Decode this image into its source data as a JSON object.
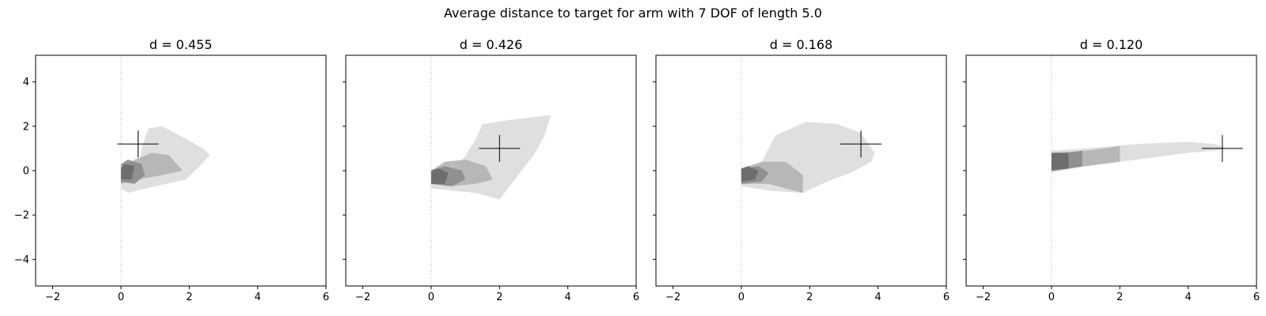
{
  "figure": {
    "title": "Average distance to target for arm with 7 DOF of length 5.0"
  },
  "chart_data": [
    {
      "type": "scatter",
      "title": "d = 0.455",
      "xlim": [
        -2.5,
        6
      ],
      "ylim": [
        -5.2,
        5.2
      ],
      "xticks": [
        -2,
        0,
        2,
        4,
        6
      ],
      "yticks": [
        -4,
        -2,
        0,
        2,
        4
      ],
      "ytick_labels_visible": true,
      "target": {
        "x": 0.5,
        "y": 1.2
      },
      "reference_line_x": 0,
      "envelopes": [
        {
          "shade": "light",
          "points": [
            [
              0.0,
              -0.5
            ],
            [
              0.5,
              -0.1
            ],
            [
              0.6,
              1.0
            ],
            [
              0.8,
              1.9
            ],
            [
              1.2,
              2.0
            ],
            [
              1.7,
              1.6
            ],
            [
              2.4,
              1.0
            ],
            [
              2.6,
              0.7
            ],
            [
              2.3,
              0.2
            ],
            [
              1.9,
              -0.4
            ],
            [
              1.0,
              -0.7
            ],
            [
              0.2,
              -1.0
            ],
            [
              0.0,
              -0.8
            ]
          ]
        },
        {
          "shade": "mid",
          "points": [
            [
              0.0,
              -0.6
            ],
            [
              0.5,
              -0.4
            ],
            [
              1.2,
              -0.2
            ],
            [
              1.8,
              0.0
            ],
            [
              1.4,
              0.7
            ],
            [
              0.9,
              0.8
            ],
            [
              0.4,
              0.5
            ],
            [
              0.0,
              0.0
            ]
          ]
        },
        {
          "shade": "dark",
          "points": [
            [
              0.0,
              -0.5
            ],
            [
              0.4,
              -0.6
            ],
            [
              0.7,
              -0.2
            ],
            [
              0.6,
              0.3
            ],
            [
              0.2,
              0.5
            ],
            [
              0.0,
              0.3
            ]
          ]
        },
        {
          "shade": "darkest",
          "points": [
            [
              0.0,
              -0.4
            ],
            [
              0.3,
              -0.4
            ],
            [
              0.4,
              0.2
            ],
            [
              0.1,
              0.3
            ],
            [
              0.0,
              0.1
            ]
          ]
        }
      ]
    },
    {
      "type": "scatter",
      "title": "d = 0.426",
      "xlim": [
        -2.5,
        6
      ],
      "ylim": [
        -5.2,
        5.2
      ],
      "xticks": [
        -2,
        0,
        2,
        4,
        6
      ],
      "yticks": [
        -4,
        -2,
        0,
        2,
        4
      ],
      "ytick_labels_visible": false,
      "target": {
        "x": 2.0,
        "y": 1.0
      },
      "reference_line_x": 0,
      "envelopes": [
        {
          "shade": "light",
          "points": [
            [
              0.0,
              -0.6
            ],
            [
              0.8,
              0.2
            ],
            [
              1.3,
              1.4
            ],
            [
              1.5,
              2.1
            ],
            [
              2.4,
              2.3
            ],
            [
              3.5,
              2.5
            ],
            [
              3.3,
              1.5
            ],
            [
              3.0,
              0.7
            ],
            [
              2.5,
              -0.3
            ],
            [
              2.0,
              -1.3
            ],
            [
              1.3,
              -1.0
            ],
            [
              0.6,
              -0.9
            ],
            [
              0.0,
              -0.8
            ]
          ]
        },
        {
          "shade": "mid",
          "points": [
            [
              0.0,
              -0.6
            ],
            [
              0.6,
              -0.7
            ],
            [
              1.3,
              -0.6
            ],
            [
              1.8,
              -0.4
            ],
            [
              1.6,
              0.2
            ],
            [
              1.0,
              0.5
            ],
            [
              0.4,
              0.4
            ],
            [
              0.0,
              0.0
            ]
          ]
        },
        {
          "shade": "dark",
          "points": [
            [
              0.0,
              -0.6
            ],
            [
              0.6,
              -0.7
            ],
            [
              1.0,
              -0.4
            ],
            [
              0.9,
              0.0
            ],
            [
              0.4,
              0.2
            ],
            [
              0.0,
              0.0
            ]
          ]
        },
        {
          "shade": "darkest",
          "points": [
            [
              0.0,
              -0.6
            ],
            [
              0.4,
              -0.6
            ],
            [
              0.5,
              -0.1
            ],
            [
              0.2,
              0.1
            ],
            [
              0.0,
              0.0
            ]
          ]
        }
      ]
    },
    {
      "type": "scatter",
      "title": "d = 0.168",
      "xlim": [
        -2.5,
        6
      ],
      "ylim": [
        -5.2,
        5.2
      ],
      "xticks": [
        -2,
        0,
        2,
        4,
        6
      ],
      "yticks": [
        -4,
        -2,
        0,
        2,
        4
      ],
      "ytick_labels_visible": false,
      "target": {
        "x": 3.5,
        "y": 1.2
      },
      "reference_line_x": 0,
      "envelopes": [
        {
          "shade": "light",
          "points": [
            [
              0.0,
              -0.5
            ],
            [
              0.6,
              0.4
            ],
            [
              1.0,
              1.6
            ],
            [
              1.9,
              2.2
            ],
            [
              2.8,
              2.1
            ],
            [
              3.5,
              1.7
            ],
            [
              3.9,
              0.8
            ],
            [
              3.8,
              0.4
            ],
            [
              3.2,
              -0.1
            ],
            [
              2.5,
              -0.5
            ],
            [
              1.8,
              -1.0
            ],
            [
              0.8,
              -0.9
            ],
            [
              0.0,
              -0.7
            ]
          ]
        },
        {
          "shade": "mid",
          "points": [
            [
              0.0,
              -0.6
            ],
            [
              0.8,
              -0.6
            ],
            [
              1.8,
              -1.0
            ],
            [
              1.8,
              -0.2
            ],
            [
              1.3,
              0.4
            ],
            [
              0.6,
              0.4
            ],
            [
              0.0,
              0.1
            ]
          ]
        },
        {
          "shade": "dark",
          "points": [
            [
              0.0,
              -0.6
            ],
            [
              0.6,
              -0.5
            ],
            [
              0.8,
              -0.1
            ],
            [
              0.5,
              0.2
            ],
            [
              0.0,
              0.1
            ]
          ]
        },
        {
          "shade": "darkest",
          "points": [
            [
              0.0,
              -0.5
            ],
            [
              0.4,
              -0.4
            ],
            [
              0.5,
              0.0
            ],
            [
              0.2,
              0.2
            ],
            [
              0.0,
              0.1
            ]
          ]
        }
      ]
    },
    {
      "type": "scatter",
      "title": "d = 0.120",
      "xlim": [
        -2.5,
        6
      ],
      "ylim": [
        -5.2,
        5.2
      ],
      "xticks": [
        -2,
        0,
        2,
        4,
        6
      ],
      "yticks": [
        -4,
        -2,
        0,
        2,
        4
      ],
      "ytick_labels_visible": false,
      "target": {
        "x": 5.0,
        "y": 1.0
      },
      "reference_line_x": 0,
      "envelopes": [
        {
          "shade": "light",
          "points": [
            [
              0.0,
              -0.1
            ],
            [
              1.0,
              0.2
            ],
            [
              2.5,
              0.5
            ],
            [
              4.0,
              0.8
            ],
            [
              4.8,
              0.9
            ],
            [
              5.1,
              1.0
            ],
            [
              4.8,
              1.2
            ],
            [
              4.0,
              1.3
            ],
            [
              2.5,
              1.2
            ],
            [
              1.0,
              1.0
            ],
            [
              0.0,
              0.9
            ]
          ]
        },
        {
          "shade": "mid",
          "points": [
            [
              0.0,
              0.0
            ],
            [
              1.0,
              0.2
            ],
            [
              2.0,
              0.4
            ],
            [
              2.0,
              1.1
            ],
            [
              1.0,
              0.9
            ],
            [
              0.0,
              0.8
            ]
          ]
        },
        {
          "shade": "dark",
          "points": [
            [
              0.0,
              0.0
            ],
            [
              0.5,
              0.1
            ],
            [
              0.9,
              0.2
            ],
            [
              0.9,
              0.9
            ],
            [
              0.5,
              0.8
            ],
            [
              0.0,
              0.8
            ]
          ]
        },
        {
          "shade": "darkest",
          "points": [
            [
              0.0,
              0.0
            ],
            [
              0.5,
              0.1
            ],
            [
              0.5,
              0.8
            ],
            [
              0.0,
              0.8
            ]
          ]
        }
      ]
    }
  ],
  "colors": {
    "light": "#d9d9d9",
    "mid": "#b3b3b3",
    "dark": "#8c8c8c",
    "darkest": "#6a6a6a",
    "axis": "#000000",
    "refline": "#aaaaaa"
  }
}
